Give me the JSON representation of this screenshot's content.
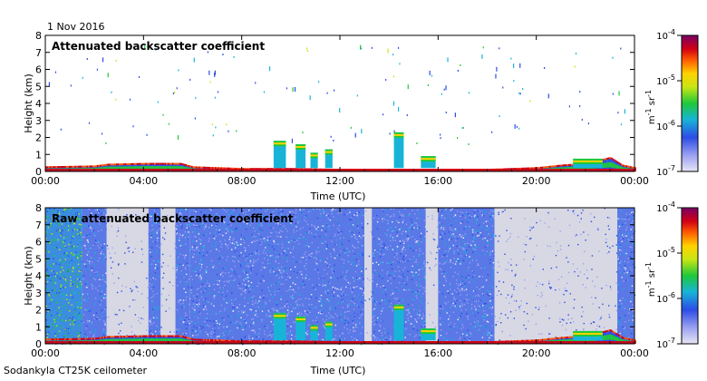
{
  "header": {
    "date": "1 Nov 2016"
  },
  "footer": {
    "site": "Sodankyla CT25K ceilometer"
  },
  "chart_data": [
    {
      "type": "heatmap",
      "title": "Attenuated backscatter coefficient",
      "xlabel": "Time (UTC)",
      "ylabel": "Height (km)",
      "xlim": [
        "00:00",
        "24:00"
      ],
      "ylim": [
        0,
        8
      ],
      "x_ticks": [
        "00:00",
        "04:00",
        "08:00",
        "12:00",
        "16:00",
        "20:00",
        "00:00"
      ],
      "y_ticks": [
        "0",
        "1",
        "2",
        "3",
        "4",
        "5",
        "6",
        "7",
        "8"
      ],
      "colorbar": {
        "scale": "log",
        "ticks": [
          "10-7",
          "10-6",
          "10-5",
          "10-4"
        ],
        "unit": "m-1 sr-1",
        "range": [
          1e-07,
          0.0001
        ]
      },
      "grid": false,
      "features": {
        "boundary_layer": [
          [
            0,
            0.25
          ],
          [
            2,
            0.3
          ],
          [
            2.5,
            0.4
          ],
          [
            4,
            0.45
          ],
          [
            5.5,
            0.45
          ],
          [
            6,
            0.25
          ],
          [
            8,
            0.15
          ],
          [
            10,
            0.15
          ],
          [
            12,
            0.1
          ],
          [
            14,
            0.1
          ],
          [
            16,
            0.1
          ],
          [
            18,
            0.1
          ],
          [
            19,
            0.15
          ],
          [
            20,
            0.2
          ],
          [
            21,
            0.35
          ],
          [
            22,
            0.45
          ],
          [
            23,
            0.8
          ],
          [
            23.5,
            0.35
          ],
          [
            24,
            0.2
          ]
        ],
        "cloud_events": [
          {
            "t": 9.3,
            "h_top": 1.8,
            "width_h": 0.5
          },
          {
            "t": 10.2,
            "h_top": 1.6,
            "width_h": 0.4
          },
          {
            "t": 10.8,
            "h_top": 1.1,
            "width_h": 0.3
          },
          {
            "t": 11.4,
            "h_top": 1.3,
            "width_h": 0.3
          },
          {
            "t": 14.2,
            "h_top": 2.3,
            "width_h": 0.4
          },
          {
            "t": 15.3,
            "h_top": 0.9,
            "width_h": 0.6
          },
          {
            "t": 21.5,
            "h_top": 0.75,
            "width_h": 1.2
          }
        ]
      }
    },
    {
      "type": "heatmap",
      "title": "Raw attenuated backscatter coefficient",
      "xlabel": "Time (UTC)",
      "ylabel": "Height (km)",
      "xlim": [
        "00:00",
        "24:00"
      ],
      "ylim": [
        0,
        8
      ],
      "x_ticks": [
        "00:00",
        "04:00",
        "08:00",
        "12:00",
        "16:00",
        "20:00",
        "00:00"
      ],
      "y_ticks": [
        "0",
        "1",
        "2",
        "3",
        "4",
        "5",
        "6",
        "7",
        "8"
      ],
      "colorbar": {
        "scale": "log",
        "ticks": [
          "10-7",
          "10-6",
          "10-5",
          "10-4"
        ],
        "unit": "m-1 sr-1",
        "range": [
          1e-07,
          0.0001
        ]
      },
      "grid": false,
      "features": {
        "noise_segments": [
          {
            "t0": 0,
            "t1": 1.5,
            "level": "high"
          },
          {
            "t0": 1.5,
            "t1": 2.5,
            "level": "medium"
          },
          {
            "t0": 2.5,
            "t1": 4.2,
            "level": "low"
          },
          {
            "t0": 4.2,
            "t1": 4.7,
            "level": "medium"
          },
          {
            "t0": 4.7,
            "t1": 5.3,
            "level": "low"
          },
          {
            "t0": 5.3,
            "t1": 5.9,
            "level": "medium"
          },
          {
            "t0": 5.9,
            "t1": 13.0,
            "level": "medium"
          },
          {
            "t0": 13.0,
            "t1": 13.3,
            "level": "low"
          },
          {
            "t0": 13.3,
            "t1": 15.5,
            "level": "medium"
          },
          {
            "t0": 15.5,
            "t1": 16.0,
            "level": "low"
          },
          {
            "t0": 16.0,
            "t1": 18.3,
            "level": "medium"
          },
          {
            "t0": 18.3,
            "t1": 23.3,
            "level": "low"
          },
          {
            "t0": 23.3,
            "t1": 24.0,
            "level": "medium"
          }
        ]
      }
    }
  ]
}
